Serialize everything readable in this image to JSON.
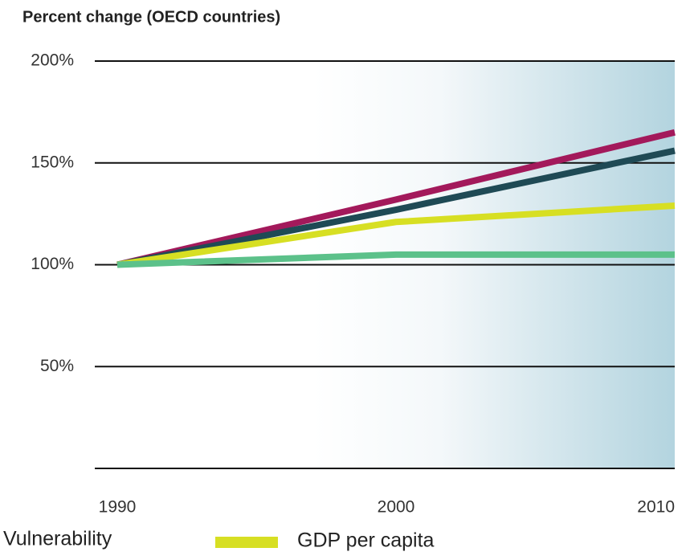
{
  "chart_data": {
    "type": "line",
    "title": "Percent change (OECD countries)",
    "x": [
      1990,
      2000,
      2010
    ],
    "xlim": [
      1990,
      2010
    ],
    "xticks": [
      1990,
      2000,
      2010
    ],
    "ylim": [
      0,
      200
    ],
    "yticks": [
      {
        "value": 50,
        "label": "50%"
      },
      {
        "value": 100,
        "label": "100%"
      },
      {
        "value": 150,
        "label": "150%"
      },
      {
        "value": 200,
        "label": "200%"
      }
    ],
    "grid": true,
    "series": [
      {
        "color": "#a3195b",
        "values": [
          100,
          132,
          165
        ]
      },
      {
        "color": "#1f4a55",
        "values": [
          100,
          127,
          156
        ]
      },
      {
        "name": "GDP per capita",
        "color": "#d7df23",
        "values": [
          100,
          121,
          129
        ]
      },
      {
        "name": "Vulnerability",
        "color": "#5cc18a",
        "values": [
          100,
          105,
          105
        ]
      }
    ]
  }
}
